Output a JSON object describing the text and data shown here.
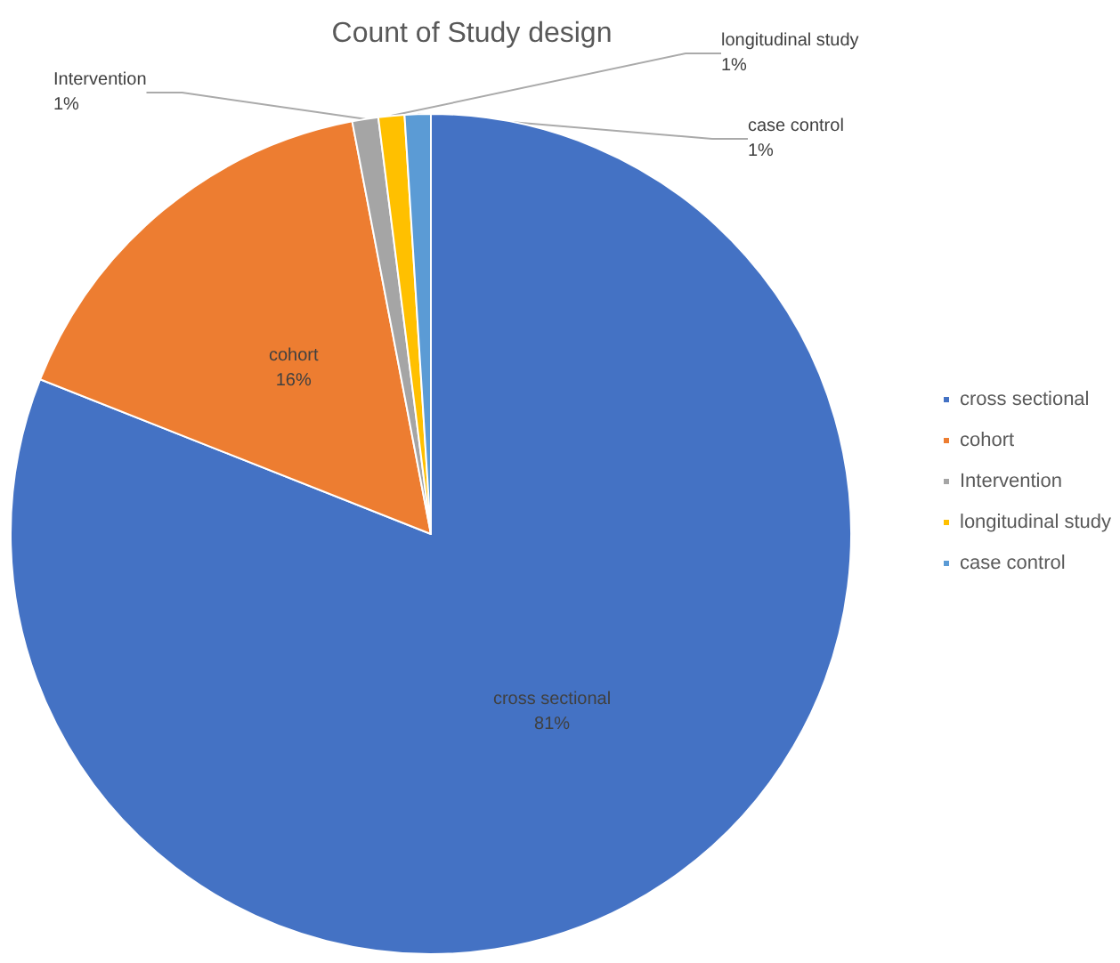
{
  "chart_data": {
    "type": "pie",
    "title": "Count of Study design",
    "categories": [
      "cross sectional",
      "cohort",
      "Intervention",
      "longitudinal study",
      "case control"
    ],
    "values": [
      81,
      16,
      1,
      1,
      1
    ],
    "colors": [
      "#4472c4",
      "#ed7d31",
      "#a5a5a5",
      "#ffc000",
      "#5b9bd5"
    ],
    "value_labels": [
      "81%",
      "16%",
      "1%",
      "1%",
      "1%"
    ],
    "legend": "right"
  }
}
